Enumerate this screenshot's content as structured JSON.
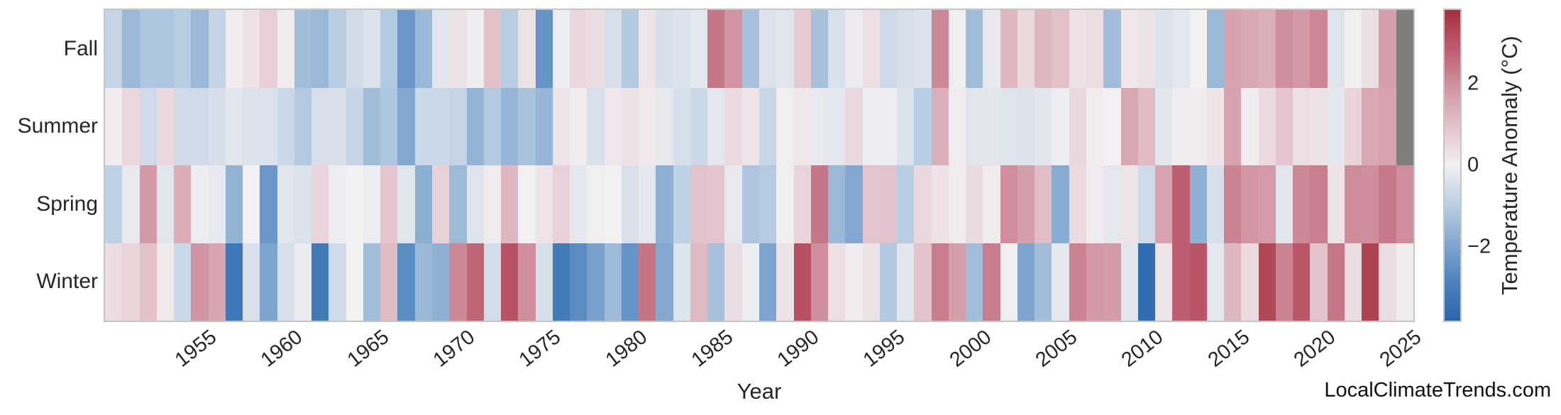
{
  "watermark": "LocalClimateTrends.com",
  "chart_data": {
    "type": "heatmap",
    "title": "",
    "xlabel": "Year",
    "ylabel": "",
    "rows": [
      "Fall",
      "Summer",
      "Spring",
      "Winter"
    ],
    "years": [
      1950,
      1951,
      1952,
      1953,
      1954,
      1955,
      1956,
      1957,
      1958,
      1959,
      1960,
      1961,
      1962,
      1963,
      1964,
      1965,
      1966,
      1967,
      1968,
      1969,
      1970,
      1971,
      1972,
      1973,
      1974,
      1975,
      1976,
      1977,
      1978,
      1979,
      1980,
      1981,
      1982,
      1983,
      1984,
      1985,
      1986,
      1987,
      1988,
      1989,
      1990,
      1991,
      1992,
      1993,
      1994,
      1995,
      1996,
      1997,
      1998,
      1999,
      2000,
      2001,
      2002,
      2003,
      2004,
      2005,
      2006,
      2007,
      2008,
      2009,
      2010,
      2011,
      2012,
      2013,
      2014,
      2015,
      2016,
      2017,
      2018,
      2019,
      2020,
      2021,
      2022,
      2023,
      2024,
      2025
    ],
    "x_tick_labels": [
      "1955",
      "1960",
      "1965",
      "1970",
      "1975",
      "1980",
      "1985",
      "1990",
      "1995",
      "2000",
      "2005",
      "2010",
      "2015",
      "2020",
      "2025"
    ],
    "series": [
      {
        "name": "Fall",
        "values": [
          -0.8,
          -1.5,
          -1.2,
          -1.2,
          -1.0,
          -1.5,
          -0.8,
          0.1,
          0.3,
          0.7,
          0.1,
          -1.4,
          -1.5,
          -1.0,
          -0.6,
          -0.4,
          -1.1,
          -2.3,
          -1.5,
          -0.3,
          0.3,
          0.1,
          1.0,
          -1.0,
          0.3,
          -2.4,
          -0.1,
          0.5,
          0.4,
          -0.5,
          -1.1,
          0.25,
          -0.5,
          -0.4,
          -0.25,
          2.4,
          1.9,
          -1.3,
          -0.4,
          -0.3,
          0.8,
          -1.3,
          -0.45,
          -0.15,
          0.35,
          -0.65,
          -0.5,
          -0.4,
          2.1,
          -0.05,
          -1.4,
          -0.2,
          1.2,
          0.5,
          1.2,
          1.0,
          0.3,
          0.4,
          -1.4,
          0.2,
          0.3,
          -0.4,
          -0.25,
          0.0,
          -1.5,
          1.6,
          1.5,
          1.35,
          2.0,
          1.8,
          2.1,
          -0.35,
          0.05,
          0.35,
          1.7,
          null
        ]
      },
      {
        "name": "Summer",
        "values": [
          0.1,
          0.5,
          -0.6,
          0.5,
          -0.6,
          -0.6,
          -0.5,
          -0.3,
          -0.4,
          -0.4,
          -0.7,
          -1.1,
          -0.5,
          -0.5,
          -0.8,
          -1.4,
          -1.2,
          -1.9,
          -0.7,
          -0.7,
          -0.8,
          -1.6,
          -1.1,
          -1.55,
          -1.25,
          -1.55,
          0.25,
          0.1,
          -0.45,
          0.2,
          0.3,
          0.15,
          -0.2,
          -0.5,
          -0.7,
          -0.25,
          0.45,
          0.25,
          -0.75,
          0.05,
          0.2,
          -0.2,
          -0.25,
          0.5,
          -0.1,
          -0.1,
          -0.4,
          -1.0,
          1.35,
          0.1,
          -0.3,
          -0.3,
          -0.35,
          -0.4,
          -0.3,
          -0.1,
          0.5,
          0.1,
          0.0,
          1.5,
          1.1,
          -0.3,
          0.1,
          0.1,
          0.25,
          1.6,
          0.1,
          0.45,
          0.9,
          0.35,
          0.3,
          -0.25,
          0.6,
          1.5,
          1.6,
          null
        ]
      },
      {
        "name": "Spring",
        "values": [
          -0.9,
          -0.2,
          1.8,
          -0.3,
          1.4,
          -0.1,
          -0.2,
          -1.6,
          0.0,
          -2.3,
          -0.3,
          -0.4,
          0.6,
          -0.1,
          0.0,
          -0.1,
          0.9,
          -0.3,
          -1.75,
          0.65,
          -1.45,
          -0.35,
          0.1,
          1.2,
          0.0,
          0.25,
          0.65,
          -0.25,
          0.05,
          0.0,
          -0.45,
          -0.25,
          -1.7,
          -0.9,
          0.95,
          0.9,
          -0.2,
          -1.2,
          -1.05,
          0.05,
          0.6,
          2.4,
          -1.5,
          -1.9,
          0.9,
          0.95,
          -1.0,
          0.5,
          0.3,
          0.1,
          0.45,
          0.1,
          2.0,
          1.7,
          1.05,
          -1.8,
          0.45,
          0.1,
          -0.25,
          0.25,
          -0.6,
          1.6,
          2.8,
          -1.7,
          -0.5,
          2.2,
          1.85,
          1.75,
          -0.3,
          2.1,
          2.25,
          0.3,
          2.05,
          2.0,
          2.35,
          2.0
        ]
      },
      {
        "name": "Winter",
        "values": [
          0.4,
          0.6,
          1.0,
          0.15,
          -0.7,
          1.9,
          1.55,
          -3.2,
          -0.45,
          -2.0,
          -0.5,
          -0.15,
          -3.1,
          -0.6,
          0.0,
          -1.4,
          1.1,
          -2.6,
          -1.5,
          -1.7,
          2.1,
          2.7,
          -0.55,
          3.05,
          2.0,
          -0.5,
          -3.1,
          -2.6,
          -2.1,
          -1.45,
          -2.4,
          2.45,
          -1.9,
          -0.35,
          1.15,
          -1.3,
          0.4,
          -0.1,
          -2.0,
          0.3,
          3.1,
          2.0,
          0.35,
          0.1,
          0.3,
          -1.1,
          -0.3,
          0.95,
          2.3,
          1.7,
          -1.4,
          2.3,
          0.05,
          -2.0,
          -1.4,
          -0.25,
          2.2,
          1.8,
          1.75,
          -0.3,
          -3.6,
          0.25,
          2.8,
          3.0,
          -0.25,
          1.2,
          0.45,
          3.3,
          2.2,
          2.95,
          0.95,
          2.4,
          0.4,
          3.4,
          0.4,
          0.1
        ]
      }
    ],
    "colorbar": {
      "label": "Temperature Anomaly (°C)",
      "ticks": [
        2,
        0,
        -2
      ],
      "vmin": -3.8,
      "vmax": 3.8
    },
    "colormap_stops": [
      [
        -3.8,
        "#2a67af"
      ],
      [
        -2.85,
        "#4c82bd"
      ],
      [
        -1.9,
        "#82a8d0"
      ],
      [
        -0.95,
        "#bccfe3"
      ],
      [
        0.0,
        "#f2f0f2"
      ],
      [
        0.95,
        "#e3c3cb"
      ],
      [
        1.9,
        "#d194a2"
      ],
      [
        2.85,
        "#bd5c6e"
      ],
      [
        3.8,
        "#a62f3f"
      ]
    ],
    "missing_color": "#7f7f7f",
    "text_color": "#262626",
    "grid": false,
    "legend_position": "right-colorbar"
  }
}
